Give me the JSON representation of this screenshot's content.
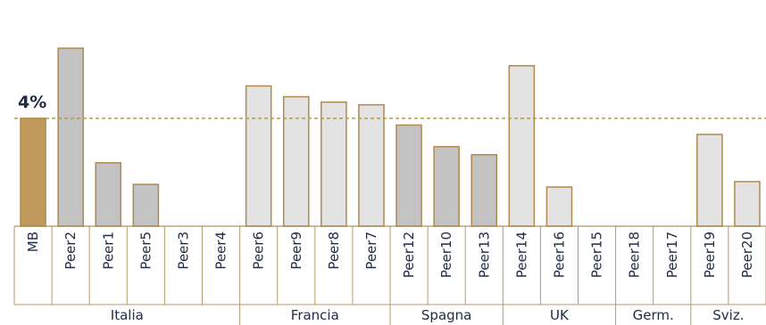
{
  "chart_data": {
    "type": "bar",
    "categories": [
      "MB",
      "Peer2",
      "Peer1",
      "Peer5",
      "Peer3",
      "Peer4",
      "Peer6",
      "Peer9",
      "Peer8",
      "Peer7",
      "Peer12",
      "Peer10",
      "Peer13",
      "Peer14",
      "Peer16",
      "Peer15",
      "Peer18",
      "Peer17",
      "Peer19",
      "Peer20"
    ],
    "values": [
      4.0,
      6.6,
      2.35,
      1.55,
      0,
      0,
      5.2,
      4.8,
      4.6,
      4.5,
      3.75,
      2.95,
      2.65,
      5.95,
      1.45,
      0,
      0,
      0,
      3.4,
      1.65
    ],
    "ylim": [
      0,
      7.0
    ],
    "reference_line": {
      "value": 4.0,
      "label": "4%"
    },
    "groups": [
      {
        "label": "Italia",
        "start": 0,
        "end": 5
      },
      {
        "label": "Francia",
        "start": 6,
        "end": 9
      },
      {
        "label": "Spagna",
        "start": 10,
        "end": 12
      },
      {
        "label": "UK",
        "start": 13,
        "end": 15
      },
      {
        "label": "Germ.",
        "start": 16,
        "end": 17
      },
      {
        "label": "Sviz.",
        "start": 18,
        "end": 19
      }
    ],
    "bar_styles": [
      "highlight",
      "dark",
      "dark",
      "dark",
      "light",
      "light",
      "light",
      "light",
      "light",
      "light",
      "dark",
      "dark",
      "dark",
      "light",
      "light",
      "light",
      "light",
      "light",
      "light",
      "light"
    ],
    "grid": false,
    "legend": "none"
  },
  "colors": {
    "highlight_fill": "#bf9a5a",
    "dark_fill": "#c3c3c3",
    "light_fill": "#e3e3e3",
    "bar_stroke": "#b08a4e",
    "reference_line": "#b89850",
    "text": "#1f2a44"
  }
}
